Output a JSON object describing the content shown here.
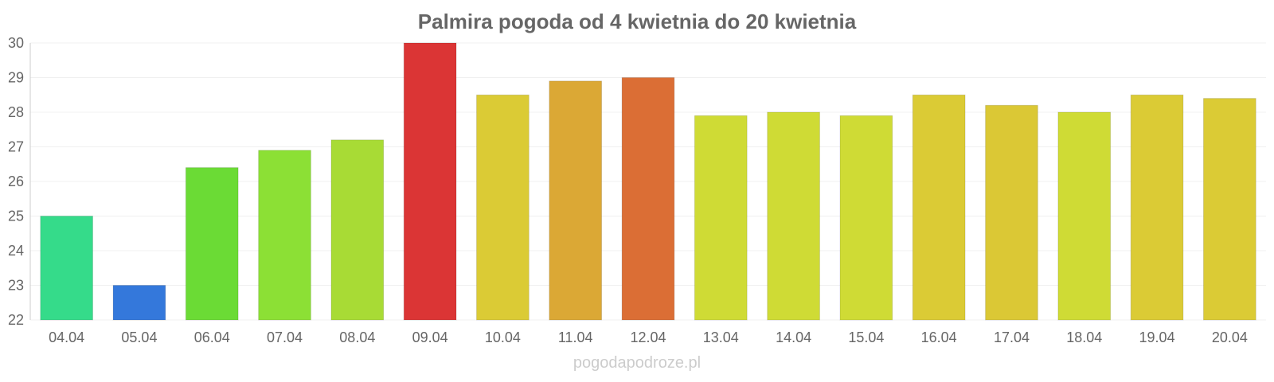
{
  "chart_data": {
    "type": "bar",
    "title": "Palmira pogoda od 4 kwietnia do 20 kwietnia",
    "xlabel": "",
    "ylabel": "",
    "ylim": [
      22,
      30
    ],
    "yticks": [
      22,
      23,
      24,
      25,
      26,
      27,
      28,
      29,
      30
    ],
    "grid": true,
    "categories": [
      "04.04",
      "05.04",
      "06.04",
      "07.04",
      "08.04",
      "09.04",
      "10.04",
      "11.04",
      "12.04",
      "13.04",
      "14.04",
      "15.04",
      "16.04",
      "17.04",
      "18.04",
      "19.04",
      "20.04"
    ],
    "values": [
      25.0,
      23.0,
      26.4,
      26.9,
      27.2,
      30.0,
      28.5,
      28.9,
      29.0,
      27.9,
      28.0,
      27.9,
      28.5,
      28.2,
      28.0,
      28.5,
      28.4
    ],
    "colors": [
      "#35db8a",
      "#3478db",
      "#6bdb35",
      "#8ce035",
      "#a8db35",
      "#db3535",
      "#dbcb35",
      "#dba835",
      "#db6e35",
      "#cfdb35",
      "#cfdb35",
      "#cfdb35",
      "#dbcb35",
      "#dbc835",
      "#cfdb35",
      "#dbcb35",
      "#dbcb35"
    ]
  },
  "credit": "pogodapodroze.pl"
}
